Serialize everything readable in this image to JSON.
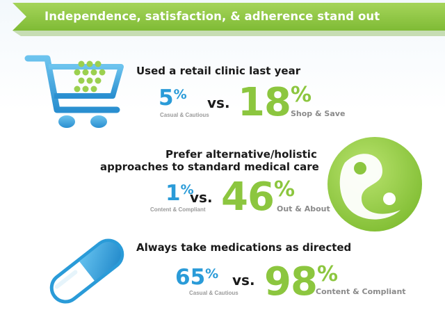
{
  "banner": {
    "title": "Independence, satisfaction, & adherence stand out"
  },
  "colors": {
    "banner_green": "#8cc63f",
    "accent_blue": "#2a9bd8",
    "accent_green": "#8cc63f",
    "segment_gray": "#9a9a9a"
  },
  "stats": [
    {
      "icon": "shopping-cart-icon",
      "title": "Used a retail clinic last year",
      "small": {
        "value": "5",
        "sign": "%",
        "segment": "Casual & Cautious"
      },
      "vs": "vs.",
      "big": {
        "value": "18",
        "sign": "%",
        "segment": "Shop & Save"
      }
    },
    {
      "icon": "yin-yang-icon",
      "title_lines": [
        "Prefer alternative/holistic",
        "approaches to standard medical care"
      ],
      "small": {
        "value": "1",
        "sign": "%",
        "segment": "Content & Compliant"
      },
      "vs": "vs.",
      "big": {
        "value": "46",
        "sign": "%",
        "segment": "Out & About"
      }
    },
    {
      "icon": "pill-capsule-icon",
      "title": "Always take medications as directed",
      "small": {
        "value": "65",
        "sign": "%",
        "segment": "Casual & Cautious"
      },
      "vs": "vs.",
      "big": {
        "value": "98",
        "sign": "%",
        "segment": "Content & Compliant"
      }
    }
  ]
}
